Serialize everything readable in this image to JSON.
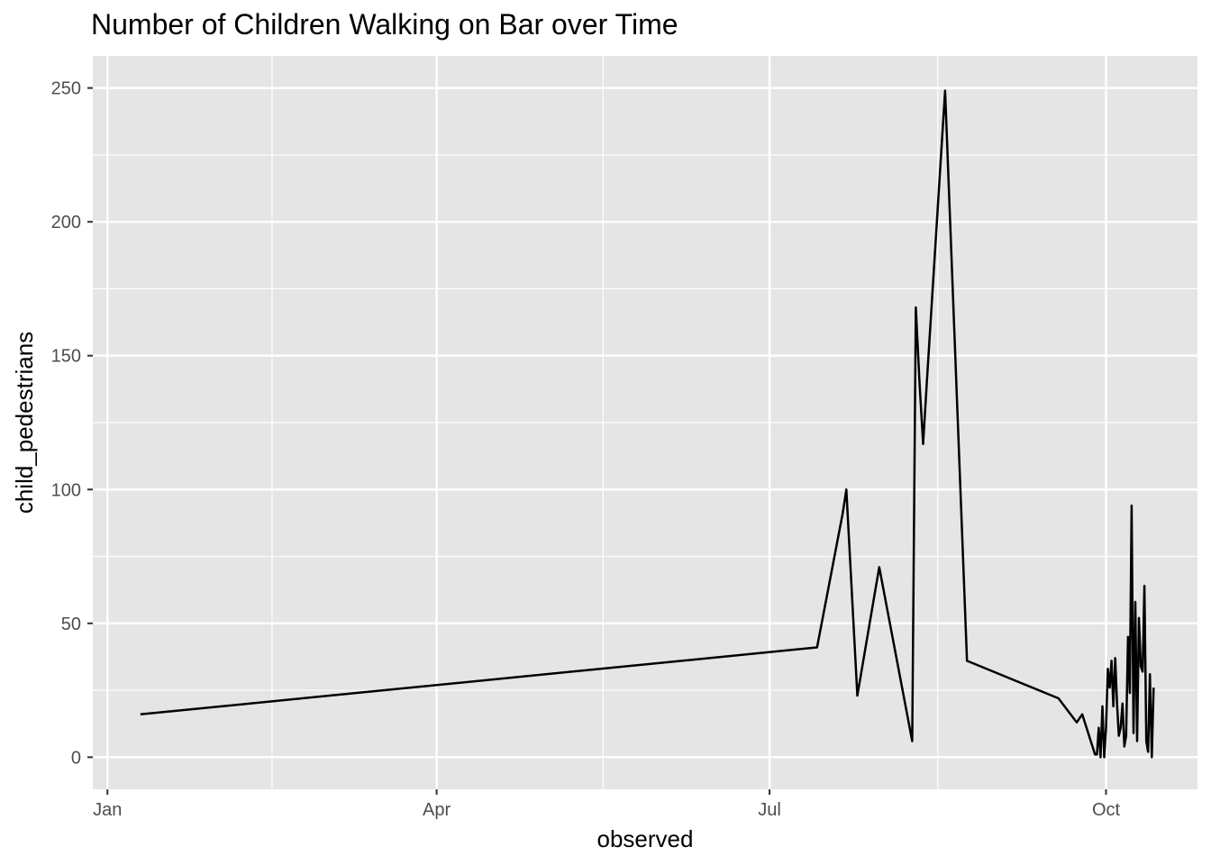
{
  "chart_data": {
    "type": "line",
    "title": "Number of Children Walking on Bar over Time",
    "xlabel": "observed",
    "ylabel": "child_pedestrians",
    "x_ticks": [
      "Jan",
      "Apr",
      "Jul",
      "Oct"
    ],
    "y_ticks": [
      "0",
      "50",
      "100",
      "150",
      "200",
      "250"
    ],
    "ylim": [
      -12,
      262
    ],
    "grid": true,
    "background": "#e5e5e5",
    "grid_color": "#ffffff",
    "line_color": "#000000",
    "x_unit": "day of year",
    "x_tick_values": [
      0,
      90,
      181,
      273
    ],
    "xlim": [
      -4,
      298
    ],
    "series": [
      {
        "x": [
          9.0,
          194.0,
          201.0,
          202.0,
          205.0,
          211.0,
          220.0,
          221.0,
          222.0,
          223.0,
          224.0,
          229.0,
          235.0,
          260.0,
          265.0,
          266.5,
          270.0,
          270.5,
          271.0,
          271.5,
          272.0,
          272.5,
          273.0,
          273.5,
          274.0,
          274.5,
          275.0,
          275.5,
          276.0,
          276.5,
          277.0,
          277.5,
          278.0,
          278.5,
          279.0,
          279.5,
          280.0,
          280.5,
          281.0,
          281.5,
          282.0,
          282.5,
          283.0,
          283.5,
          284.0,
          284.5,
          285.0,
          285.5,
          286.0
        ],
        "y": [
          16,
          41,
          91,
          100,
          23,
          71,
          6,
          168,
          140,
          117,
          140,
          249,
          36,
          22,
          13,
          16,
          1,
          1,
          11,
          0,
          19,
          0,
          11,
          33,
          26,
          36,
          19,
          37,
          20,
          8,
          11,
          20,
          4,
          8,
          45,
          24,
          94,
          9,
          58,
          6,
          52,
          34,
          32,
          64,
          6,
          2,
          31,
          0,
          26
        ]
      }
    ]
  }
}
